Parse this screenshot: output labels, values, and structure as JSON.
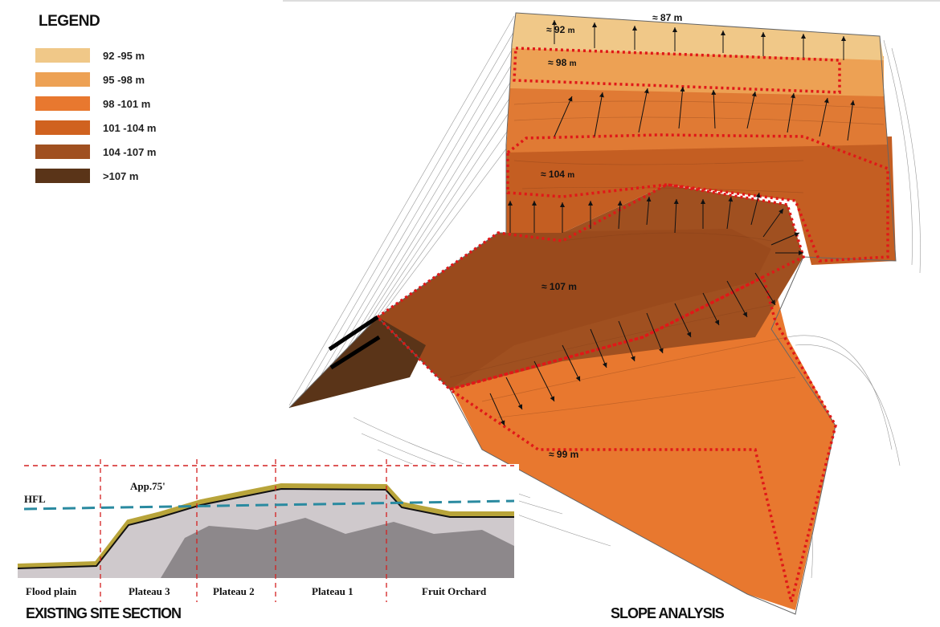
{
  "legend": {
    "title": "LEGEND",
    "items": [
      {
        "label": "92 -95 m",
        "color": "#f0c888"
      },
      {
        "label": "95 -98 m",
        "color": "#eda154"
      },
      {
        "label": "98 -101 m",
        "color": "#e8782f"
      },
      {
        "label": "101 -104 m",
        "color": "#d0621f"
      },
      {
        "label": "104 -107 m",
        "color": "#a05020"
      },
      {
        "label": ">107 m",
        "color": "#5a3418"
      }
    ]
  },
  "map": {
    "labels": {
      "z87": "≈ 87 m",
      "z92": "≈ 92",
      "z98": "≈ 98",
      "z104": "≈ 104",
      "z107": "≈ 107 m",
      "z99": "≈ 99 m",
      "unit": "m"
    },
    "caption": "SLOPE ANALYSIS"
  },
  "section": {
    "hfl": "HFL",
    "height_note": "App.75'",
    "zones": [
      "Flood plain",
      "Plateau 3",
      "Plateau 2",
      "Plateau 1",
      "Fruit Orchard"
    ],
    "caption": "EXISTING SITE SECTION"
  }
}
